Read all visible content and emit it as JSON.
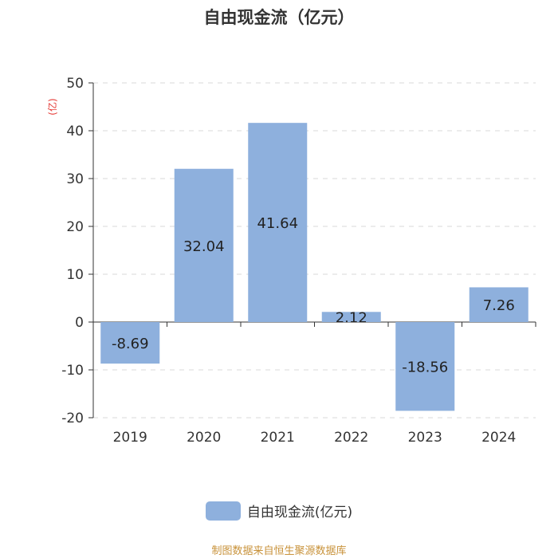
{
  "title": "自由现金流（亿元）",
  "source_note": "制图数据来自恒生聚源数据库",
  "colors": {
    "bar": "#8eb0dd",
    "unit": "#e53935",
    "source": "#c8923a"
  },
  "chart_data": {
    "type": "bar",
    "title": "自由现金流（亿元）",
    "categories": [
      "2019",
      "2020",
      "2021",
      "2022",
      "2023",
      "2024"
    ],
    "series": [
      {
        "name": "自由现金流(亿元)",
        "values": [
          -8.69,
          32.04,
          41.64,
          2.12,
          -18.56,
          7.26
        ]
      }
    ],
    "data_labels": [
      "-8.69",
      "32.04",
      "41.64",
      "2.12",
      "-18.56",
      "7.26"
    ],
    "ylabel": "(亿)",
    "ylim": [
      -20,
      50
    ],
    "yticks": [
      -20,
      -10,
      0,
      10,
      20,
      30,
      40,
      50
    ],
    "grid": true,
    "legend": "bottom"
  }
}
